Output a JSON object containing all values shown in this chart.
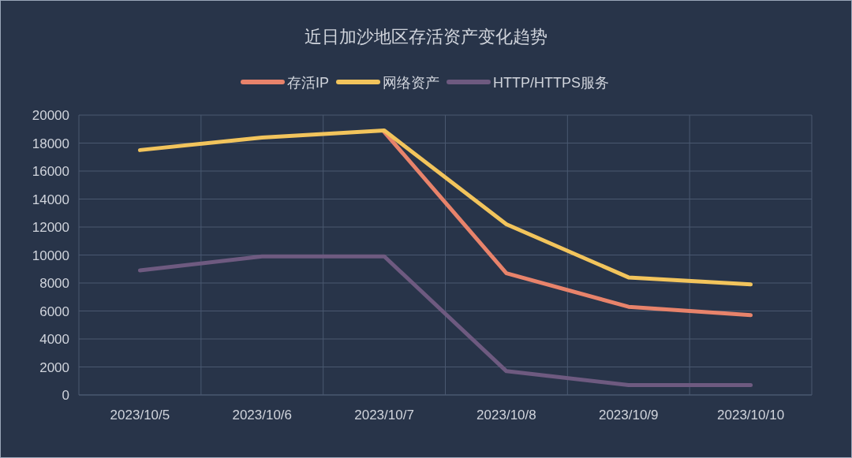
{
  "chart_data": {
    "type": "line",
    "title": "近日加沙地区存活资产变化趋势",
    "categories": [
      "2023/10/5",
      "2023/10/6",
      "2023/10/7",
      "2023/10/8",
      "2023/10/9",
      "2023/10/10"
    ],
    "series": [
      {
        "name": "存活IP",
        "color": "#e8836b",
        "values": [
          null,
          null,
          18800,
          8700,
          6300,
          5700
        ]
      },
      {
        "name": "网络资产",
        "color": "#f2c45c",
        "values": [
          17500,
          18400,
          18900,
          12200,
          8400,
          7900
        ]
      },
      {
        "name": "HTTP/HTTPS服务",
        "color": "#6e5a80",
        "values": [
          8900,
          9900,
          9900,
          1700,
          700,
          700
        ]
      }
    ],
    "ylim": [
      0,
      20000
    ],
    "yticks": [
      0,
      2000,
      4000,
      6000,
      8000,
      10000,
      12000,
      14000,
      16000,
      18000,
      20000
    ],
    "grid": true,
    "legend": "top",
    "marker": "none",
    "line_style": "solid"
  }
}
